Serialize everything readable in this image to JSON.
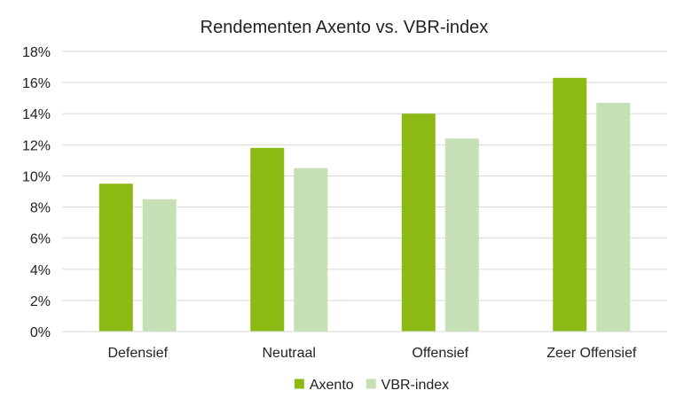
{
  "chart_data": {
    "type": "bar",
    "title": "Rendementen Axento vs. VBR-index",
    "xlabel": "",
    "ylabel": "",
    "categories": [
      "Defensief",
      "Neutraal",
      "Offensief",
      "Zeer Offensief"
    ],
    "series": [
      {
        "name": "Axento",
        "color": "#8db915",
        "values": [
          9.5,
          11.8,
          14.0,
          16.3
        ]
      },
      {
        "name": "VBR-index",
        "color": "#c5e0b4",
        "values": [
          8.5,
          10.5,
          12.4,
          14.7
        ]
      }
    ],
    "ylim": [
      0,
      18
    ],
    "y_ticks": [
      0,
      2,
      4,
      6,
      8,
      10,
      12,
      14,
      16,
      18
    ],
    "y_tick_labels": [
      "0%",
      "2%",
      "4%",
      "6%",
      "8%",
      "10%",
      "12%",
      "14%",
      "16%",
      "18%"
    ],
    "grid": true,
    "legend_position": "bottom-center"
  }
}
